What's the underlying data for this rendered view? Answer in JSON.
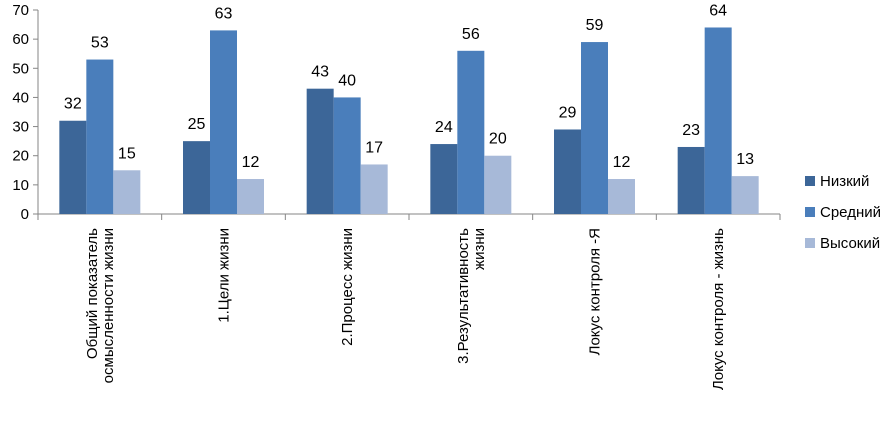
{
  "chart_data": {
    "type": "bar",
    "categories": [
      "Общий показатель осмысленности жизни",
      "1.Цели жизни",
      "2.Процесс жизни",
      "3.Результативность жизни",
      "Локус контроля -Я",
      "Локус контроля - жизнь"
    ],
    "series": [
      {
        "name": "Низкий",
        "color": "#3c6698",
        "values": [
          32,
          25,
          43,
          24,
          29,
          23
        ]
      },
      {
        "name": "Средний",
        "color": "#4a7ebb",
        "values": [
          53,
          63,
          40,
          56,
          59,
          64
        ]
      },
      {
        "name": "Высокий",
        "color": "#a7b9d8",
        "values": [
          15,
          12,
          17,
          20,
          12,
          13
        ]
      }
    ],
    "ylim": [
      0,
      70
    ],
    "yticks": [
      0,
      10,
      20,
      30,
      40,
      50,
      60,
      70
    ],
    "grid": false,
    "legend": "right"
  }
}
